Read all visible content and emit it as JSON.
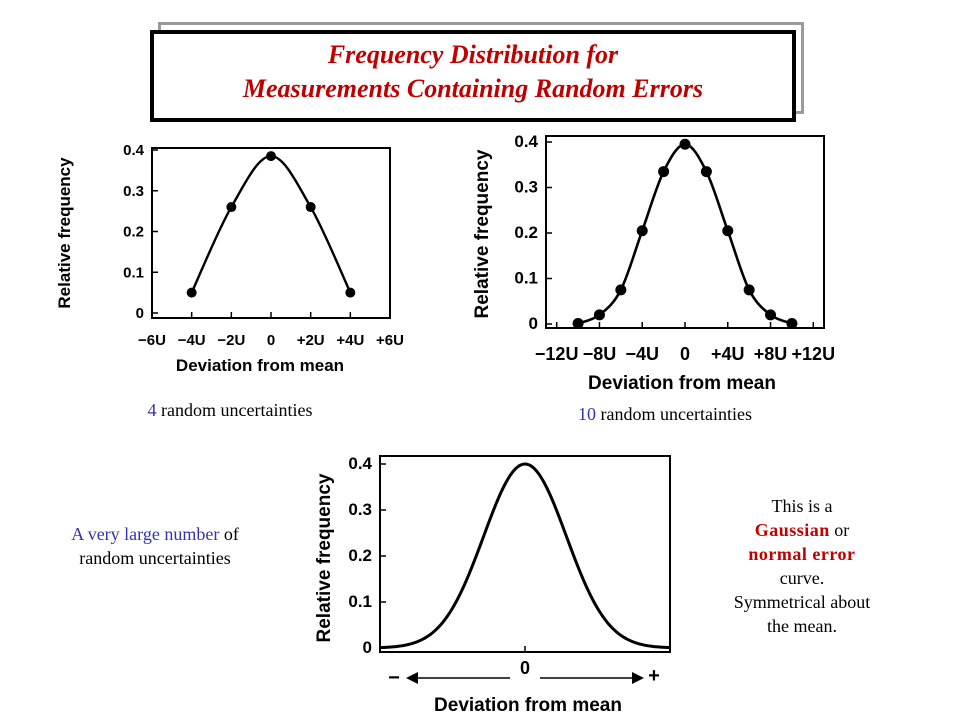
{
  "title": {
    "line1": "Frequency Distribution for",
    "line2": "Measurements Containing Random Errors"
  },
  "colors": {
    "title": "#c00000",
    "highlight_blue": "#3333aa",
    "highlight_red": "#c00000"
  },
  "captions": {
    "c1_number": "4",
    "c1_text": " random uncertainties",
    "c2_number": "10",
    "c2_text": " random uncertainties",
    "c3_highlight": "A very large number",
    "c3_rest1": " of",
    "c3_rest2": "random uncertainties",
    "c4_line1": "This is a",
    "c4_gaussian": "Gaussian",
    "c4_or": " or",
    "c4_normal": "normal error",
    "c4_curve": "curve.",
    "c4_line5": "Symmetrical about",
    "c4_line6": "the mean."
  },
  "chart_data": [
    {
      "type": "line",
      "ylabel": "Relative frequency",
      "xlabel": "Deviation from mean",
      "ylim": [
        0,
        0.4
      ],
      "xlim": [
        -6,
        6
      ],
      "yticks": [
        "0",
        "0.1",
        "0.2",
        "0.3",
        "0.4"
      ],
      "ytick_values": [
        0,
        0.1,
        0.2,
        0.3,
        0.4
      ],
      "xticks": [
        "−6U",
        "−4U",
        "−2U",
        "0",
        "+2U",
        "+4U",
        "+6U"
      ],
      "xtick_values": [
        -6,
        -4,
        -2,
        0,
        2,
        4,
        6
      ],
      "points": [
        {
          "x": -4,
          "y": 0.05
        },
        {
          "x": -2,
          "y": 0.26
        },
        {
          "x": 0,
          "y": 0.385
        },
        {
          "x": 2,
          "y": 0.26
        },
        {
          "x": 4,
          "y": 0.05
        }
      ]
    },
    {
      "type": "line",
      "ylabel": "Relative frequency",
      "xlabel": "Deviation from mean",
      "ylim": [
        0,
        0.4
      ],
      "xlim": [
        -13,
        13
      ],
      "yticks": [
        "0",
        "0.1",
        "0.2",
        "0.3",
        "0.4"
      ],
      "ytick_values": [
        0,
        0.1,
        0.2,
        0.3,
        0.4
      ],
      "xticks": [
        "−12U",
        "−8U",
        "−4U",
        "0",
        "+4U",
        "+8U",
        "+12U"
      ],
      "xtick_values": [
        -12,
        -8,
        -4,
        0,
        4,
        8,
        12
      ],
      "points": [
        {
          "x": -10,
          "y": 0.001
        },
        {
          "x": -8,
          "y": 0.02
        },
        {
          "x": -6,
          "y": 0.075
        },
        {
          "x": -4,
          "y": 0.205
        },
        {
          "x": -2,
          "y": 0.335
        },
        {
          "x": 0,
          "y": 0.395
        },
        {
          "x": 2,
          "y": 0.335
        },
        {
          "x": 4,
          "y": 0.205
        },
        {
          "x": 6,
          "y": 0.075
        },
        {
          "x": 8,
          "y": 0.02
        },
        {
          "x": 10,
          "y": 0.001
        }
      ]
    },
    {
      "type": "line",
      "ylabel": "Relative frequency",
      "xlabel": "Deviation from mean",
      "ylim": [
        0,
        0.4
      ],
      "xlim": [
        -3.5,
        3.5
      ],
      "yticks": [
        "0",
        "0.1",
        "0.2",
        "0.3",
        "0.4"
      ],
      "ytick_values": [
        0,
        0.1,
        0.2,
        0.3,
        0.4
      ],
      "xticks": [
        "0"
      ],
      "xtick_values": [
        0
      ],
      "x_left_sign": "−",
      "x_right_sign": "+",
      "curve": "gaussian",
      "peak": 0.4,
      "sigma": 1
    }
  ]
}
